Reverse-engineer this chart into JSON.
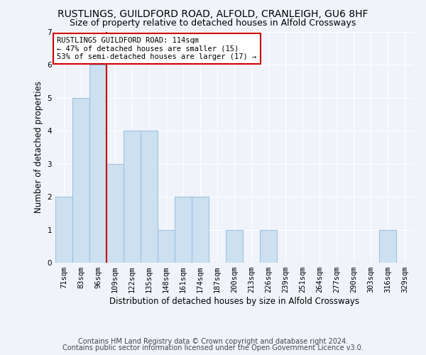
{
  "title": "RUSTLINGS, GUILDFORD ROAD, ALFOLD, CRANLEIGH, GU6 8HF",
  "subtitle": "Size of property relative to detached houses in Alfold Crossways",
  "xlabel": "Distribution of detached houses by size in Alfold Crossways",
  "ylabel": "Number of detached properties",
  "footer_line1": "Contains HM Land Registry data © Crown copyright and database right 2024.",
  "footer_line2": "Contains public sector information licensed under the Open Government Licence v3.0.",
  "categories": [
    "71sqm",
    "83sqm",
    "96sqm",
    "109sqm",
    "122sqm",
    "135sqm",
    "148sqm",
    "161sqm",
    "174sqm",
    "187sqm",
    "200sqm",
    "213sqm",
    "226sqm",
    "239sqm",
    "251sqm",
    "264sqm",
    "277sqm",
    "290sqm",
    "303sqm",
    "316sqm",
    "329sqm"
  ],
  "values": [
    2,
    5,
    6,
    3,
    4,
    4,
    1,
    2,
    2,
    0,
    1,
    0,
    1,
    0,
    0,
    0,
    0,
    0,
    0,
    1,
    0
  ],
  "bar_color": "#cce0f0",
  "bar_edge_color": "#a0c0e0",
  "vline_x_index": 2.5,
  "vline_color": "#cc0000",
  "annotation_title": "RUSTLINGS GUILDFORD ROAD: 114sqm",
  "annotation_line1": "← 47% of detached houses are smaller (15)",
  "annotation_line2": "53% of semi-detached houses are larger (17) →",
  "annotation_box_color": "#ffffff",
  "annotation_border_color": "#cc0000",
  "ylim": [
    0,
    7
  ],
  "yticks": [
    0,
    1,
    2,
    3,
    4,
    5,
    6,
    7
  ],
  "background_color": "#f0f4fa",
  "plot_bg_color": "#f0f4fa",
  "grid_color": "#ffffff",
  "title_fontsize": 10,
  "subtitle_fontsize": 9,
  "axis_label_fontsize": 8.5,
  "tick_fontsize": 7.5,
  "footer_fontsize": 7,
  "annotation_fontsize": 7.5
}
